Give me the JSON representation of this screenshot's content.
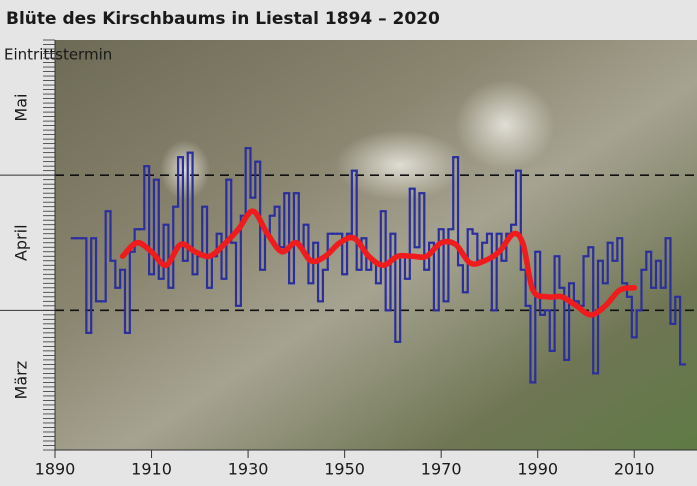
{
  "chart_data": {
    "type": "step-line",
    "title": "Blüte des Kirschbaums in Liestal 1894 – 2020",
    "y_axis_label": "Eintrittstermin",
    "xlim": [
      1890,
      2023
    ],
    "xticks": [
      1890,
      1910,
      1930,
      1950,
      1970,
      1990,
      2010
    ],
    "ylim": [
      60,
      151
    ],
    "yticks": [
      {
        "value": 75.5,
        "label": "März"
      },
      {
        "value": 106,
        "label": "April"
      },
      {
        "value": 136,
        "label": "Mai"
      }
    ],
    "reference_lines": [
      91,
      121
    ],
    "minor_tick_step": 1,
    "series": [
      {
        "style": "step",
        "color": "#2b2f9e",
        "x": [
          1894,
          1895,
          1896,
          1897,
          1898,
          1899,
          1900,
          1901,
          1902,
          1903,
          1904,
          1905,
          1906,
          1907,
          1908,
          1909,
          1910,
          1911,
          1912,
          1913,
          1914,
          1915,
          1916,
          1917,
          1918,
          1919,
          1920,
          1921,
          1922,
          1923,
          1924,
          1925,
          1926,
          1927,
          1928,
          1929,
          1930,
          1931,
          1932,
          1933,
          1934,
          1935,
          1936,
          1937,
          1938,
          1939,
          1940,
          1941,
          1942,
          1943,
          1944,
          1945,
          1946,
          1947,
          1948,
          1949,
          1950,
          1951,
          1952,
          1953,
          1954,
          1955,
          1956,
          1957,
          1958,
          1959,
          1960,
          1961,
          1962,
          1963,
          1964,
          1965,
          1966,
          1967,
          1968,
          1969,
          1970,
          1971,
          1972,
          1973,
          1974,
          1975,
          1976,
          1977,
          1978,
          1979,
          1980,
          1981,
          1982,
          1983,
          1984,
          1985,
          1986,
          1987,
          1988,
          1989,
          1990,
          1991,
          1992,
          1993,
          1994,
          1995,
          1996,
          1997,
          1998,
          1999,
          2000,
          2001,
          2002,
          2003,
          2004,
          2005,
          2006,
          2007,
          2008,
          2009,
          2010,
          2011,
          2012,
          2013,
          2014,
          2015,
          2016,
          2017,
          2018,
          2019,
          2020
        ],
        "values": [
          107,
          107,
          107,
          86,
          107,
          93,
          93,
          113,
          102,
          96,
          100,
          86,
          104,
          109,
          109,
          123,
          99,
          120,
          98,
          110,
          96,
          114,
          125,
          102,
          126,
          99,
          103,
          114,
          96,
          103,
          108,
          98,
          120,
          106,
          92,
          112,
          127,
          116,
          124,
          100,
          108,
          112,
          114,
          105,
          117,
          97,
          117,
          105,
          110,
          97,
          106,
          93,
          100,
          108,
          108,
          108,
          99,
          108,
          122,
          100,
          107,
          100,
          102,
          97,
          113,
          91,
          108,
          84,
          103,
          98,
          118,
          105,
          117,
          100,
          106,
          91,
          109,
          93,
          109,
          125,
          101,
          95,
          109,
          108,
          102,
          106,
          108,
          91,
          108,
          102,
          108,
          110,
          122,
          100,
          92,
          75,
          104,
          90,
          91,
          82,
          103,
          96,
          80,
          97,
          93,
          92,
          103,
          105,
          77,
          102,
          97,
          106,
          102,
          107,
          97,
          94,
          85,
          91,
          100,
          104,
          96,
          102,
          96,
          107,
          88,
          94,
          79
        ]
      },
      {
        "style": "smooth",
        "color": "#ee1c1c",
        "x": [
          1904,
          1907,
          1910,
          1913,
          1916,
          1919,
          1922,
          1925,
          1928,
          1931,
          1934,
          1937,
          1940,
          1943,
          1946,
          1949,
          1952,
          1955,
          1958,
          1961,
          1964,
          1967,
          1970,
          1973,
          1976,
          1979,
          1982,
          1985,
          1987,
          1989,
          1992,
          1995,
          1998,
          2001,
          2004,
          2007,
          2010
        ],
        "values": [
          103,
          106,
          104,
          101,
          105.6,
          104,
          103,
          105.6,
          109,
          113,
          108,
          104,
          106,
          102,
          103,
          106,
          107,
          103,
          101,
          103,
          103,
          103,
          106,
          105.6,
          101.5,
          102,
          104,
          108,
          105.6,
          95.5,
          94,
          94,
          92,
          90,
          92,
          95.5,
          96
        ]
      }
    ]
  }
}
